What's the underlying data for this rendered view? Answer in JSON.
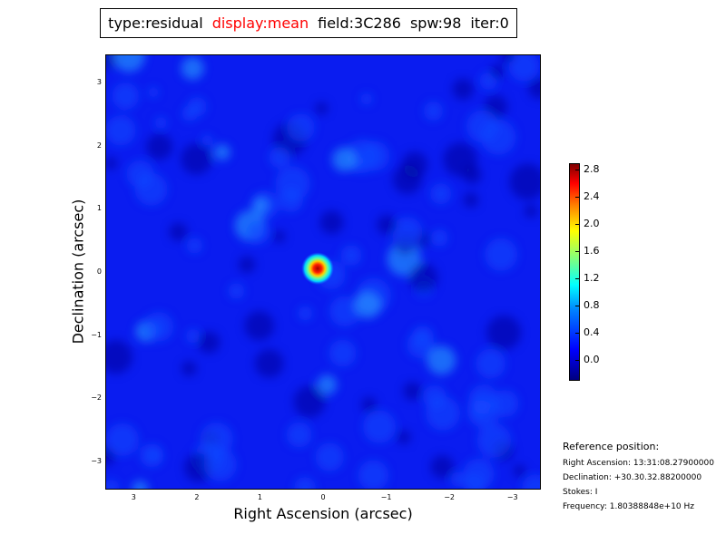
{
  "title": {
    "type": "type:residual",
    "display": "display:mean",
    "field": "field:3C286",
    "spw": "spw:98",
    "iter": "iter:0",
    "display_color": "#ff0000"
  },
  "chart_data": {
    "type": "heatmap",
    "xlabel": "Right Ascension (arcsec)",
    "ylabel": "Declination (arcsec)",
    "xlim": [
      3.45,
      -3.45
    ],
    "ylim": [
      -3.45,
      3.45
    ],
    "xticks": [
      "3",
      "2",
      "1",
      "0",
      "−1",
      "−2",
      "−3"
    ],
    "yticks": [
      "3",
      "2",
      "1",
      "0",
      "−1",
      "−2",
      "−3"
    ],
    "colormap": "jet",
    "colorbar": {
      "range": [
        -0.31,
        2.89
      ],
      "ticks": [
        "2.8",
        "2.4",
        "2.0",
        "1.6",
        "1.2",
        "0.8",
        "0.4",
        "0.0"
      ]
    },
    "peak": {
      "x": 0.1,
      "y": 0.07,
      "value": 2.85
    }
  },
  "reference": {
    "heading": "Reference position:",
    "ra": "Right Ascension: 13:31:08.27900000",
    "dec": "Declination: +30.30.32.88200000",
    "stokes": "Stokes: I",
    "frequency": "Frequency: 1.80388848e+10 Hz"
  }
}
